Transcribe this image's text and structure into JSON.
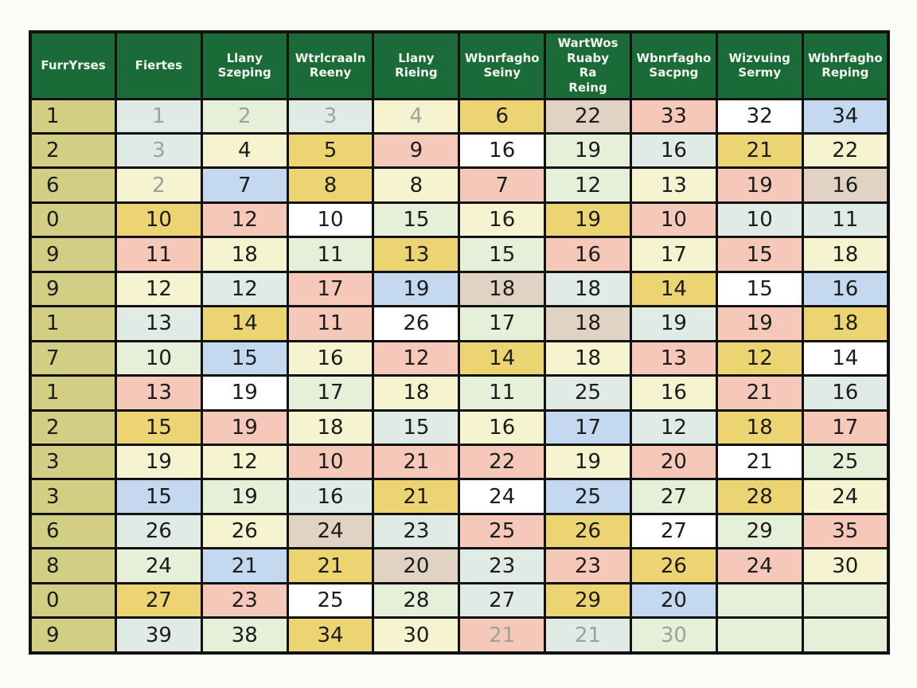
{
  "palette": {
    "header_bg": "#1a6b38",
    "header_text": "#f2f6ef",
    "grid_line": "#111111",
    "page_bg": "#fbfbf7",
    "text": "#1c1c1c",
    "muted_text": "#9aa49c",
    "cell_colors": {
      "olive": "#d2cf85",
      "green": "#e6efd8",
      "mint": "#dfebe4",
      "paleyellow": "#f6f3d0",
      "gold": "#edd472",
      "pink": "#f5c8b9",
      "blue": "#c4d8f0",
      "white": "#ffffff",
      "tan": "#e1d3c3"
    }
  },
  "table": {
    "columns": [
      {
        "label": "FurrYrses"
      },
      {
        "label": "Fiertes"
      },
      {
        "label": "Llany\nSzeping"
      },
      {
        "label": "Wtrlcraaln\nReeny"
      },
      {
        "label": "Llany\nRieing"
      },
      {
        "label": "Wbnrfagho\nSeiny"
      },
      {
        "label": "WartWos\nRuaby\nRa\nReing"
      },
      {
        "label": "Wbnrfagho\nSacpng"
      },
      {
        "label": "Wizvuing\nSermy"
      },
      {
        "label": "Wbhrfagho\nReping"
      }
    ],
    "rows": [
      {
        "cells": [
          {
            "v": "1",
            "bg": "olive"
          },
          {
            "v": "1",
            "bg": "mint",
            "muted": true
          },
          {
            "v": "2",
            "bg": "green",
            "muted": true
          },
          {
            "v": "3",
            "bg": "mint",
            "muted": true
          },
          {
            "v": "4",
            "bg": "paleyellow",
            "muted": true
          },
          {
            "v": "6",
            "bg": "gold"
          },
          {
            "v": "22",
            "bg": "tan"
          },
          {
            "v": "33",
            "bg": "pink"
          },
          {
            "v": "32",
            "bg": "white"
          },
          {
            "v": "34",
            "bg": "blue"
          }
        ]
      },
      {
        "cells": [
          {
            "v": "2",
            "bg": "olive"
          },
          {
            "v": "3",
            "bg": "mint",
            "muted": true
          },
          {
            "v": "4",
            "bg": "paleyellow"
          },
          {
            "v": "5",
            "bg": "gold"
          },
          {
            "v": "9",
            "bg": "pink"
          },
          {
            "v": "16",
            "bg": "white"
          },
          {
            "v": "19",
            "bg": "green"
          },
          {
            "v": "16",
            "bg": "mint"
          },
          {
            "v": "21",
            "bg": "gold"
          },
          {
            "v": "22",
            "bg": "paleyellow"
          }
        ]
      },
      {
        "cells": [
          {
            "v": "6",
            "bg": "olive"
          },
          {
            "v": "2",
            "bg": "paleyellow",
            "muted": true
          },
          {
            "v": "7",
            "bg": "blue"
          },
          {
            "v": "8",
            "bg": "gold"
          },
          {
            "v": "8",
            "bg": "paleyellow"
          },
          {
            "v": "7",
            "bg": "pink"
          },
          {
            "v": "12",
            "bg": "green"
          },
          {
            "v": "13",
            "bg": "paleyellow"
          },
          {
            "v": "19",
            "bg": "pink"
          },
          {
            "v": "16",
            "bg": "tan"
          }
        ]
      },
      {
        "cells": [
          {
            "v": "0",
            "bg": "olive"
          },
          {
            "v": "10",
            "bg": "gold"
          },
          {
            "v": "12",
            "bg": "pink"
          },
          {
            "v": "10",
            "bg": "white"
          },
          {
            "v": "15",
            "bg": "green"
          },
          {
            "v": "16",
            "bg": "paleyellow"
          },
          {
            "v": "19",
            "bg": "gold"
          },
          {
            "v": "10",
            "bg": "pink"
          },
          {
            "v": "10",
            "bg": "mint"
          },
          {
            "v": "11",
            "bg": "mint"
          }
        ]
      },
      {
        "cells": [
          {
            "v": "9",
            "bg": "olive"
          },
          {
            "v": "11",
            "bg": "pink"
          },
          {
            "v": "18",
            "bg": "paleyellow"
          },
          {
            "v": "11",
            "bg": "green"
          },
          {
            "v": "13",
            "bg": "gold"
          },
          {
            "v": "15",
            "bg": "green"
          },
          {
            "v": "16",
            "bg": "pink"
          },
          {
            "v": "17",
            "bg": "paleyellow"
          },
          {
            "v": "15",
            "bg": "pink"
          },
          {
            "v": "18",
            "bg": "paleyellow"
          }
        ]
      },
      {
        "cells": [
          {
            "v": "9",
            "bg": "olive"
          },
          {
            "v": "12",
            "bg": "paleyellow"
          },
          {
            "v": "12",
            "bg": "mint"
          },
          {
            "v": "17",
            "bg": "pink"
          },
          {
            "v": "19",
            "bg": "blue"
          },
          {
            "v": "18",
            "bg": "tan"
          },
          {
            "v": "18",
            "bg": "mint"
          },
          {
            "v": "14",
            "bg": "gold"
          },
          {
            "v": "15",
            "bg": "white"
          },
          {
            "v": "16",
            "bg": "blue"
          }
        ]
      },
      {
        "cells": [
          {
            "v": "1",
            "bg": "olive"
          },
          {
            "v": "13",
            "bg": "mint"
          },
          {
            "v": "14",
            "bg": "gold"
          },
          {
            "v": "11",
            "bg": "pink"
          },
          {
            "v": "26",
            "bg": "white"
          },
          {
            "v": "17",
            "bg": "green"
          },
          {
            "v": "18",
            "bg": "tan"
          },
          {
            "v": "19",
            "bg": "mint"
          },
          {
            "v": "19",
            "bg": "pink"
          },
          {
            "v": "18",
            "bg": "gold"
          }
        ]
      },
      {
        "cells": [
          {
            "v": "7",
            "bg": "olive"
          },
          {
            "v": "10",
            "bg": "green"
          },
          {
            "v": "15",
            "bg": "blue"
          },
          {
            "v": "16",
            "bg": "paleyellow"
          },
          {
            "v": "12",
            "bg": "pink"
          },
          {
            "v": "14",
            "bg": "gold"
          },
          {
            "v": "18",
            "bg": "paleyellow"
          },
          {
            "v": "13",
            "bg": "pink"
          },
          {
            "v": "12",
            "bg": "gold"
          },
          {
            "v": "14",
            "bg": "white"
          }
        ]
      },
      {
        "cells": [
          {
            "v": "1",
            "bg": "olive"
          },
          {
            "v": "13",
            "bg": "pink"
          },
          {
            "v": "19",
            "bg": "white"
          },
          {
            "v": "17",
            "bg": "green"
          },
          {
            "v": "18",
            "bg": "paleyellow"
          },
          {
            "v": "11",
            "bg": "green"
          },
          {
            "v": "25",
            "bg": "mint"
          },
          {
            "v": "16",
            "bg": "paleyellow"
          },
          {
            "v": "21",
            "bg": "pink"
          },
          {
            "v": "16",
            "bg": "mint"
          }
        ]
      },
      {
        "cells": [
          {
            "v": "2",
            "bg": "olive"
          },
          {
            "v": "15",
            "bg": "gold"
          },
          {
            "v": "19",
            "bg": "pink"
          },
          {
            "v": "18",
            "bg": "paleyellow"
          },
          {
            "v": "15",
            "bg": "mint"
          },
          {
            "v": "16",
            "bg": "paleyellow"
          },
          {
            "v": "17",
            "bg": "blue"
          },
          {
            "v": "12",
            "bg": "mint"
          },
          {
            "v": "18",
            "bg": "gold"
          },
          {
            "v": "17",
            "bg": "pink"
          }
        ]
      },
      {
        "cells": [
          {
            "v": "3",
            "bg": "olive"
          },
          {
            "v": "19",
            "bg": "paleyellow"
          },
          {
            "v": "12",
            "bg": "paleyellow"
          },
          {
            "v": "10",
            "bg": "pink"
          },
          {
            "v": "21",
            "bg": "pink"
          },
          {
            "v": "22",
            "bg": "pink"
          },
          {
            "v": "19",
            "bg": "paleyellow"
          },
          {
            "v": "20",
            "bg": "pink"
          },
          {
            "v": "21",
            "bg": "white"
          },
          {
            "v": "25",
            "bg": "green"
          }
        ]
      },
      {
        "cells": [
          {
            "v": "3",
            "bg": "olive"
          },
          {
            "v": "15",
            "bg": "blue"
          },
          {
            "v": "19",
            "bg": "green"
          },
          {
            "v": "16",
            "bg": "mint"
          },
          {
            "v": "21",
            "bg": "gold"
          },
          {
            "v": "24",
            "bg": "white"
          },
          {
            "v": "25",
            "bg": "blue"
          },
          {
            "v": "27",
            "bg": "green"
          },
          {
            "v": "28",
            "bg": "gold"
          },
          {
            "v": "24",
            "bg": "paleyellow"
          }
        ]
      },
      {
        "cells": [
          {
            "v": "6",
            "bg": "olive"
          },
          {
            "v": "26",
            "bg": "mint"
          },
          {
            "v": "26",
            "bg": "paleyellow"
          },
          {
            "v": "24",
            "bg": "tan"
          },
          {
            "v": "23",
            "bg": "mint"
          },
          {
            "v": "25",
            "bg": "pink"
          },
          {
            "v": "26",
            "bg": "gold"
          },
          {
            "v": "27",
            "bg": "white"
          },
          {
            "v": "29",
            "bg": "green"
          },
          {
            "v": "35",
            "bg": "pink"
          }
        ]
      },
      {
        "cells": [
          {
            "v": "8",
            "bg": "olive"
          },
          {
            "v": "24",
            "bg": "green"
          },
          {
            "v": "21",
            "bg": "blue"
          },
          {
            "v": "21",
            "bg": "gold"
          },
          {
            "v": "20",
            "bg": "tan"
          },
          {
            "v": "23",
            "bg": "mint"
          },
          {
            "v": "23",
            "bg": "pink"
          },
          {
            "v": "26",
            "bg": "gold"
          },
          {
            "v": "24",
            "bg": "pink"
          },
          {
            "v": "30",
            "bg": "paleyellow"
          }
        ]
      },
      {
        "cells": [
          {
            "v": "0",
            "bg": "olive"
          },
          {
            "v": "27",
            "bg": "gold"
          },
          {
            "v": "23",
            "bg": "pink"
          },
          {
            "v": "25",
            "bg": "white"
          },
          {
            "v": "28",
            "bg": "green"
          },
          {
            "v": "27",
            "bg": "mint"
          },
          {
            "v": "29",
            "bg": "gold"
          },
          {
            "v": "20",
            "bg": "blue"
          },
          {
            "v": "",
            "bg": "green"
          },
          {
            "v": "",
            "bg": "green"
          }
        ]
      },
      {
        "cells": [
          {
            "v": "9",
            "bg": "olive"
          },
          {
            "v": "39",
            "bg": "mint"
          },
          {
            "v": "38",
            "bg": "green"
          },
          {
            "v": "34",
            "bg": "gold"
          },
          {
            "v": "30",
            "bg": "paleyellow"
          },
          {
            "v": "21",
            "bg": "pink",
            "muted": true
          },
          {
            "v": "21",
            "bg": "mint",
            "muted": true
          },
          {
            "v": "30",
            "bg": "green",
            "muted": true
          },
          {
            "v": "",
            "bg": "green"
          },
          {
            "v": "",
            "bg": "green"
          }
        ]
      }
    ]
  }
}
